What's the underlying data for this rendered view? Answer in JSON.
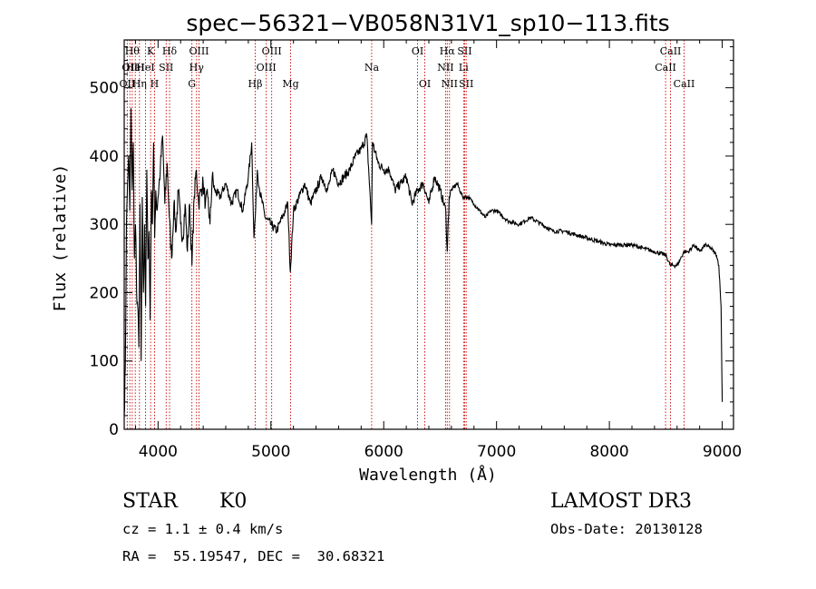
{
  "chart_data": {
    "type": "line",
    "title": "spec−56321−VB058N31V1_sp10−113.fits",
    "xlabel": "Wavelength (Å)",
    "ylabel": "Flux (relative)",
    "xlim": [
      3700,
      9100
    ],
    "ylim": [
      0,
      570
    ],
    "xticks": [
      4000,
      5000,
      6000,
      7000,
      8000,
      9000
    ],
    "yticks": [
      0,
      100,
      200,
      300,
      400,
      500
    ],
    "line_color": "#000000",
    "marker_color": "#cc0000",
    "series": [
      {
        "name": "flux",
        "x": [
          3700,
          3710,
          3720,
          3730,
          3740,
          3750,
          3760,
          3770,
          3780,
          3790,
          3800,
          3810,
          3820,
          3830,
          3840,
          3850,
          3860,
          3870,
          3880,
          3890,
          3900,
          3910,
          3920,
          3930,
          3940,
          3950,
          3960,
          3970,
          3980,
          3990,
          4000,
          4020,
          4040,
          4060,
          4080,
          4100,
          4120,
          4140,
          4160,
          4180,
          4200,
          4220,
          4240,
          4260,
          4280,
          4300,
          4320,
          4340,
          4360,
          4380,
          4400,
          4420,
          4440,
          4460,
          4480,
          4500,
          4550,
          4600,
          4650,
          4700,
          4750,
          4800,
          4830,
          4850,
          4861,
          4880,
          4900,
          4950,
          5000,
          5050,
          5100,
          5150,
          5172,
          5200,
          5250,
          5300,
          5350,
          5400,
          5450,
          5500,
          5550,
          5600,
          5650,
          5700,
          5750,
          5800,
          5850,
          5893,
          5900,
          5950,
          6000,
          6050,
          6100,
          6150,
          6200,
          6250,
          6300,
          6350,
          6400,
          6450,
          6500,
          6550,
          6563,
          6580,
          6600,
          6650,
          6700,
          6750,
          6800,
          6850,
          6900,
          6950,
          7000,
          7100,
          7200,
          7300,
          7400,
          7500,
          7600,
          7700,
          7800,
          7900,
          8000,
          8100,
          8200,
          8300,
          8400,
          8500,
          8540,
          8600,
          8662,
          8700,
          8750,
          8800,
          8850,
          8900,
          8950,
          8970,
          8990,
          9000
        ],
        "values": [
          20,
          90,
          300,
          360,
          400,
          320,
          470,
          350,
          420,
          250,
          300,
          200,
          180,
          120,
          330,
          100,
          340,
          200,
          300,
          180,
          380,
          250,
          290,
          160,
          350,
          300,
          420,
          280,
          350,
          320,
          340,
          380,
          430,
          330,
          390,
          310,
          250,
          330,
          290,
          350,
          300,
          280,
          330,
          260,
          330,
          240,
          340,
          380,
          330,
          350,
          360,
          330,
          340,
          300,
          370,
          350,
          340,
          360,
          330,
          350,
          320,
          370,
          420,
          280,
          310,
          380,
          350,
          310,
          300,
          290,
          310,
          330,
          230,
          320,
          340,
          360,
          330,
          350,
          370,
          350,
          380,
          360,
          370,
          380,
          400,
          410,
          430,
          300,
          420,
          390,
          380,
          380,
          350,
          360,
          370,
          330,
          350,
          360,
          330,
          370,
          350,
          320,
          260,
          340,
          350,
          360,
          340,
          340,
          330,
          320,
          310,
          320,
          320,
          305,
          300,
          310,
          300,
          290,
          290,
          285,
          280,
          275,
          270,
          270,
          270,
          265,
          260,
          255,
          240,
          240,
          260,
          260,
          270,
          260,
          270,
          265,
          255,
          240,
          180,
          40
        ]
      }
    ],
    "line_markers": [
      {
        "wave": 3727,
        "label": "OII",
        "row": 2
      },
      {
        "wave": 3750,
        "label": "OII",
        "row": 1
      },
      {
        "wave": 3771,
        "label": "Hθ",
        "row": 0
      },
      {
        "wave": 3798,
        "label": "HeI",
        "row": 1
      },
      {
        "wave": 3835,
        "label": "Hη",
        "row": 2
      },
      {
        "wave": 3889,
        "label": "HeI",
        "row": 1
      },
      {
        "wave": 3934,
        "label": "K",
        "row": 0
      },
      {
        "wave": 3969,
        "label": "H",
        "row": 2
      },
      {
        "wave": 4072,
        "label": "SII",
        "row": 1
      },
      {
        "wave": 4102,
        "label": "Hδ",
        "row": 0
      },
      {
        "wave": 4300,
        "label": "G",
        "row": 2
      },
      {
        "wave": 4341,
        "label": "Hγ",
        "row": 1
      },
      {
        "wave": 4363,
        "label": "OIII",
        "row": 0
      },
      {
        "wave": 4861,
        "label": "Hβ",
        "row": 2
      },
      {
        "wave": 4959,
        "label": "OIII",
        "row": 1
      },
      {
        "wave": 5007,
        "label": "OIII",
        "row": 0
      },
      {
        "wave": 5175,
        "label": "Mg",
        "row": 2
      },
      {
        "wave": 5893,
        "label": "Na",
        "row": 1
      },
      {
        "wave": 6300,
        "label": "OI",
        "row": 0
      },
      {
        "wave": 6364,
        "label": "OI",
        "row": 2
      },
      {
        "wave": 6548,
        "label": "NII",
        "row": 1
      },
      {
        "wave": 6563,
        "label": "Hα",
        "row": 0
      },
      {
        "wave": 6583,
        "label": "NII",
        "row": 2
      },
      {
        "wave": 6708,
        "label": "Li",
        "row": 1
      },
      {
        "wave": 6717,
        "label": "SII",
        "row": 0
      },
      {
        "wave": 6731,
        "label": "SII",
        "row": 2
      },
      {
        "wave": 8498,
        "label": "CaII",
        "row": 1
      },
      {
        "wave": 8542,
        "label": "CaII",
        "row": 0
      },
      {
        "wave": 8662,
        "label": "CaII",
        "row": 2
      }
    ]
  },
  "info": {
    "class": "STAR",
    "subclass": "K0",
    "survey": "LAMOST DR3",
    "cz": "cz = 1.1 ± 0.4 km/s",
    "obs_date": "Obs-Date: 20130128",
    "coords": "RA =  55.19547, DEC =  30.68321"
  }
}
